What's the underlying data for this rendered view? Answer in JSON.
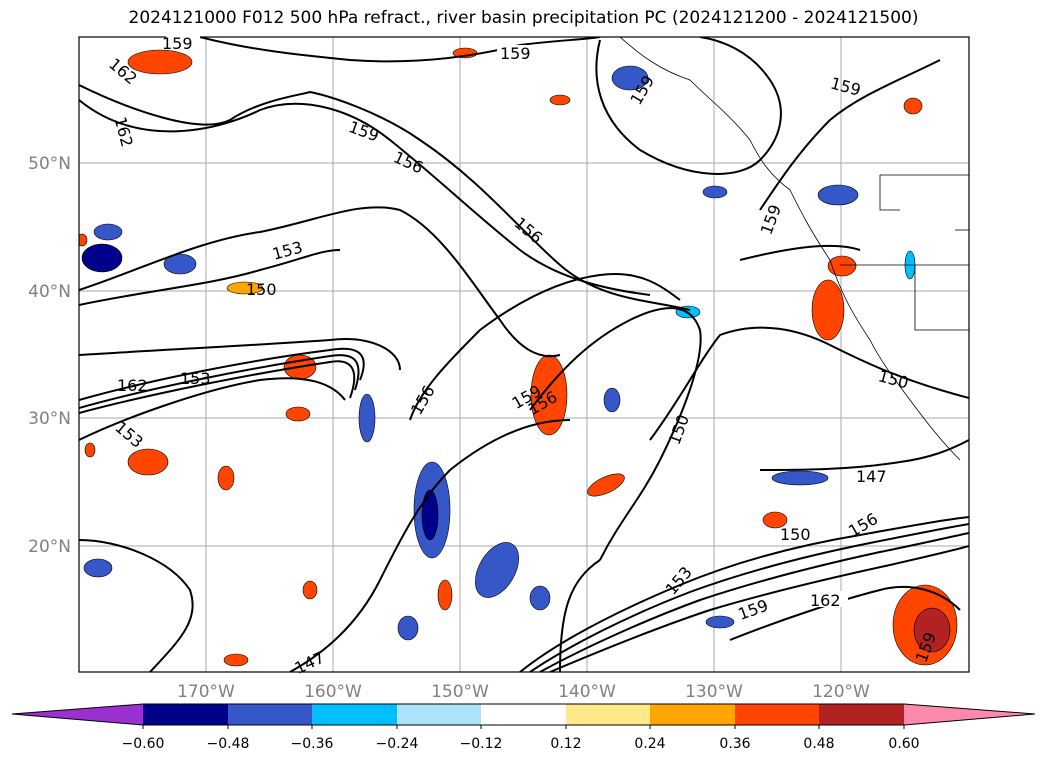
{
  "title": "2024121000 F012 500 hPa refract., river basin precipitation PC (2024121200 - 2024121500)",
  "map": {
    "lat_labels": [
      "50°N",
      "40°N",
      "30°N",
      "20°N"
    ],
    "lon_labels": [
      "170°W",
      "160°W",
      "150°W",
      "140°W",
      "130°W",
      "120°W"
    ],
    "contour_labels": [
      "159",
      "162",
      "162",
      "159",
      "159",
      "159",
      "156",
      "156",
      "153",
      "150",
      "159",
      "162",
      "153",
      "153",
      "156",
      "159",
      "156",
      "150",
      "150",
      "147",
      "150",
      "156",
      "153",
      "159",
      "162",
      "147",
      "159",
      "159"
    ]
  },
  "colorbar": {
    "tick_labels": [
      "−0.60",
      "−0.48",
      "−0.36",
      "−0.24",
      "−0.12",
      "0.12",
      "0.24",
      "0.36",
      "0.48",
      "0.60"
    ],
    "colors": [
      "#9b30d0",
      "#00008b",
      "#3657c8",
      "#00bfff",
      "#aee2fa",
      "#ffffff",
      "#ffe98a",
      "#ffa500",
      "#ff4500",
      "#b22222",
      "#ff89ac"
    ]
  }
}
